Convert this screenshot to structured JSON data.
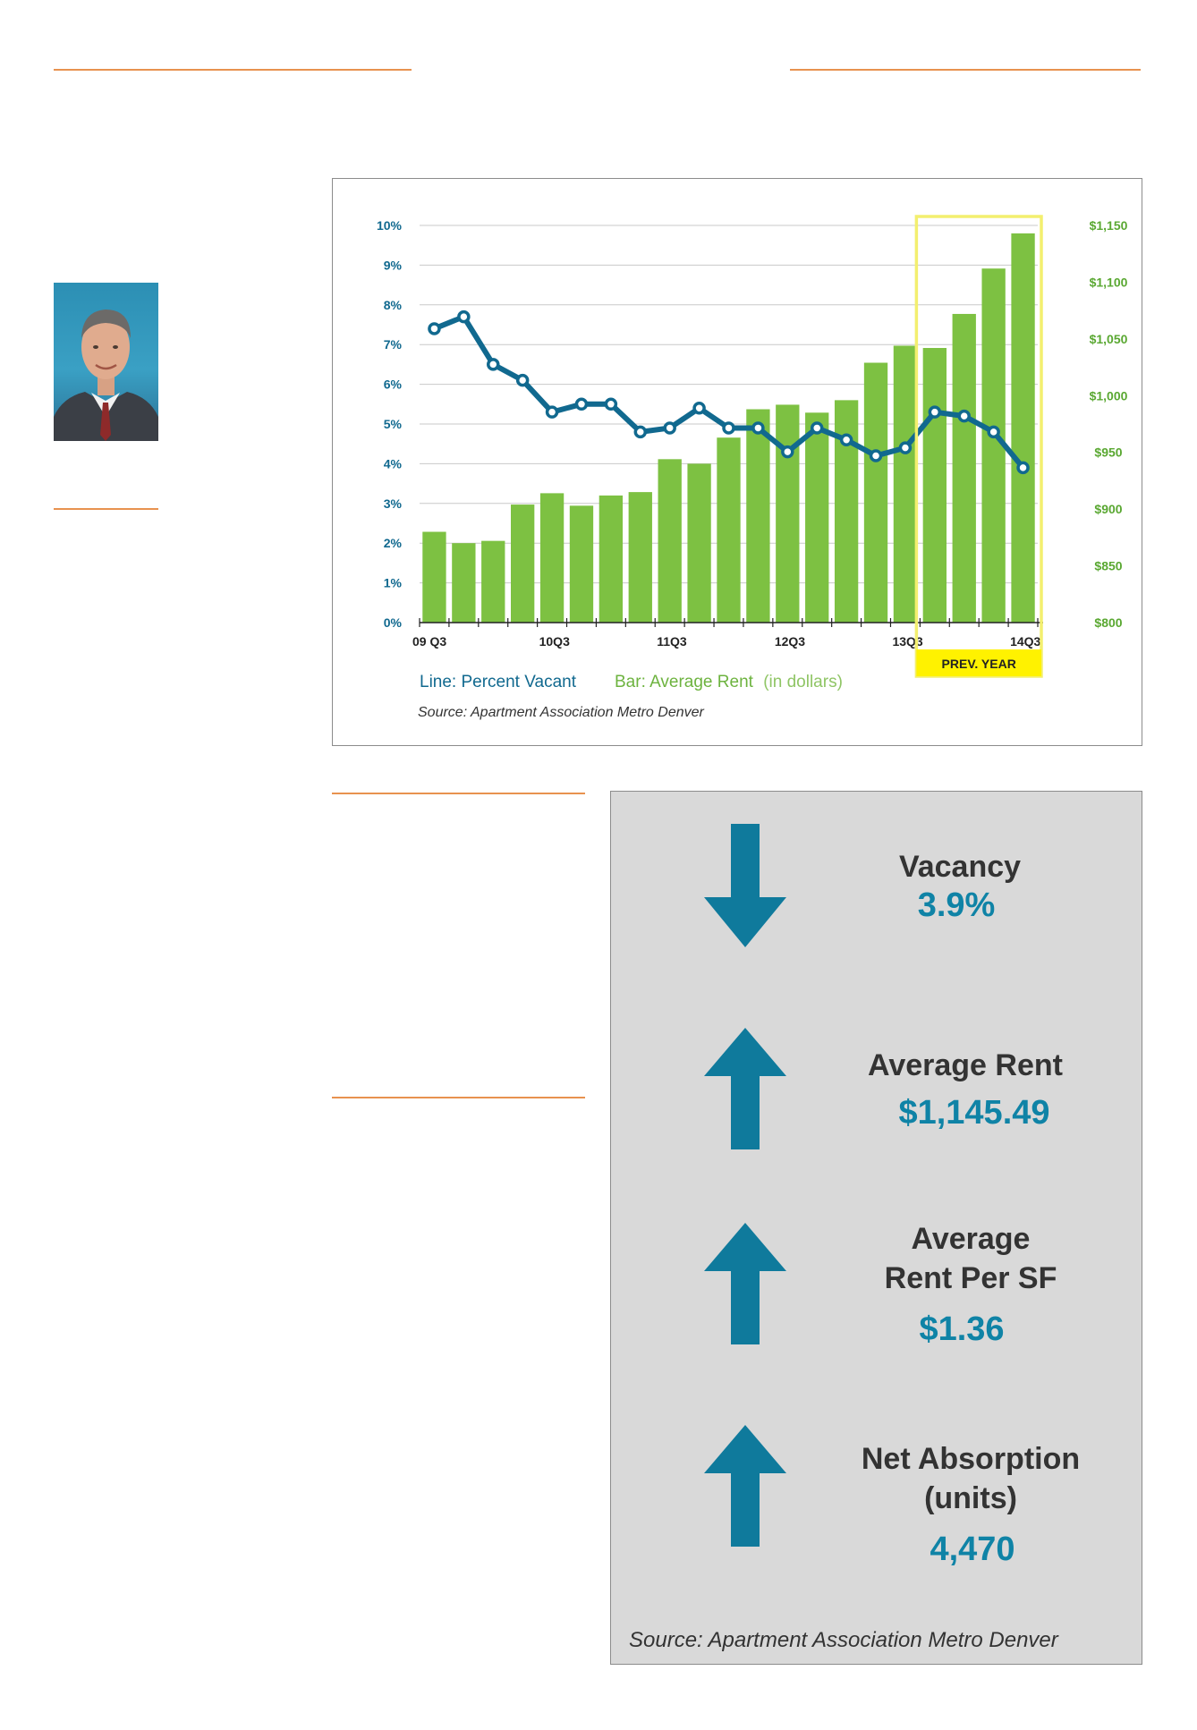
{
  "chart_data": {
    "type": "bar",
    "categories": [
      "09 Q3",
      "09 Q4",
      "10 Q1",
      "10 Q2",
      "10Q3",
      "10 Q4",
      "11 Q1",
      "11 Q2",
      "11Q3",
      "11 Q4",
      "12 Q1",
      "12 Q2",
      "12Q3",
      "12 Q4",
      "13 Q1",
      "13 Q2",
      "13Q3",
      "13 Q4",
      "14 Q1",
      "14 Q2",
      "14Q3"
    ],
    "x_tick_labels": [
      "09 Q3",
      "10Q3",
      "11Q3",
      "12Q3",
      "13Q3",
      "14Q3"
    ],
    "series": [
      {
        "name": "Average Rent (in dollars)",
        "type": "bar",
        "axis": "right",
        "color": "#7dc142",
        "values": [
          880,
          870,
          872,
          904,
          914,
          903,
          912,
          915,
          944,
          940,
          963,
          988,
          992,
          985,
          996,
          1029,
          1044,
          1042,
          1072,
          1112,
          1143
        ]
      },
      {
        "name": "Percent Vacant",
        "type": "line",
        "axis": "left",
        "color": "#11698f",
        "values": [
          7.4,
          7.7,
          6.5,
          6.1,
          5.3,
          5.5,
          5.5,
          4.8,
          4.9,
          5.4,
          4.9,
          4.9,
          4.3,
          4.9,
          4.6,
          4.2,
          4.4,
          5.3,
          5.2,
          4.8,
          3.9
        ]
      }
    ],
    "y_left": {
      "ticks": [
        "0%",
        "1%",
        "2%",
        "3%",
        "4%",
        "5%",
        "6%",
        "7%",
        "8%",
        "9%",
        "10%"
      ],
      "ylim": [
        0,
        10
      ]
    },
    "y_right": {
      "ticks": [
        "$800",
        "$850",
        "$900",
        "$950",
        "$1,000",
        "$1,050",
        "$1,100",
        "$1,150"
      ],
      "ylim": [
        800,
        1150
      ]
    },
    "highlight": {
      "label": "PREV. YEAR",
      "from_index": 17,
      "to_index": 20
    },
    "legend": {
      "line_label": "Line: Percent Vacant",
      "bar_label": "Bar: Average Rent",
      "bar_note": "(in dollars)"
    },
    "source": "Source: Apartment Association Metro Denver",
    "grid": true
  },
  "stats": {
    "items": [
      {
        "direction": "down",
        "title": [
          "Vacancy"
        ],
        "value": "3.9%"
      },
      {
        "direction": "up",
        "title": [
          "Average Rent"
        ],
        "value": "$1,145.49"
      },
      {
        "direction": "up",
        "title": [
          "Average",
          "Rent Per SF"
        ],
        "value": "$1.36"
      },
      {
        "direction": "up",
        "title": [
          "Net Absorption",
          "(units)"
        ],
        "value": "4,470"
      }
    ],
    "source": "Source: Apartment Association Metro Denver",
    "colors": {
      "arrow": "#0f7a9c",
      "value": "#0f83a6"
    }
  }
}
